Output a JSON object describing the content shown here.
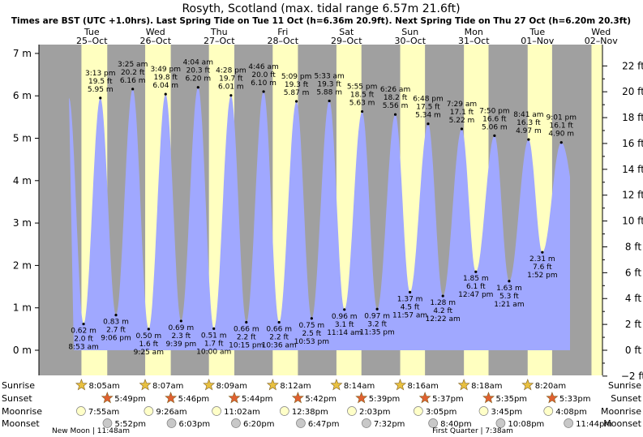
{
  "chart_data": {
    "type": "area",
    "title": "Rosyth, Scotland (max. tidal range 6.57m 21.6ft)",
    "subtitle": "Times are BST (UTC +1.0hrs). Last Spring Tide on Tue 11 Oct (h=6.36m 20.9ft). Next Spring Tide on Thu 27 Oct (h=6.20m 20.3ft)",
    "y_left": {
      "unit": "m",
      "range": [
        -0.7,
        7.3
      ],
      "ticks": [
        "0 m",
        "1 m",
        "2 m",
        "3 m",
        "4 m",
        "5 m",
        "6 m",
        "7 m"
      ]
    },
    "y_right": {
      "unit": "ft",
      "ticks": [
        "−2 ft",
        "0 ft",
        "2 ft",
        "4 ft",
        "6 ft",
        "8 ft",
        "10 ft",
        "12 ft",
        "14 ft",
        "16 ft",
        "18 ft",
        "20 ft",
        "22 ft"
      ]
    },
    "days": [
      {
        "dow": "Tue",
        "date": "25–Oct"
      },
      {
        "dow": "Wed",
        "date": "26–Oct"
      },
      {
        "dow": "Thu",
        "date": "27–Oct"
      },
      {
        "dow": "Fri",
        "date": "28–Oct"
      },
      {
        "dow": "Sat",
        "date": "29–Oct"
      },
      {
        "dow": "Sun",
        "date": "30–Oct"
      },
      {
        "dow": "Mon",
        "date": "31–Oct"
      },
      {
        "dow": "Tue",
        "date": "01–Nov"
      },
      {
        "dow": "Wed",
        "date": "02–Nov"
      }
    ],
    "tides": [
      {
        "type": "low",
        "day": 0,
        "time": "8:53 am",
        "m": "0.62 m",
        "ft": "2.0 ft",
        "h": 0.62
      },
      {
        "type": "high",
        "day": 0,
        "time": "3:13 pm",
        "m": "5.95 m",
        "ft": "19.5 ft",
        "h": 5.95
      },
      {
        "type": "low",
        "day": 0,
        "time": "9:06 pm",
        "m": "0.83 m",
        "ft": "2.7 ft",
        "h": 0.83
      },
      {
        "type": "high",
        "day": 1,
        "time": "3:25 am",
        "m": "6.16 m",
        "ft": "20.2 ft",
        "h": 6.16
      },
      {
        "type": "low",
        "day": 1,
        "time": "9:25 am",
        "m": "0.50 m",
        "ft": "1.6 ft",
        "h": 0.5
      },
      {
        "type": "high",
        "day": 1,
        "time": "3:49 pm",
        "m": "6.04 m",
        "ft": "19.8 ft",
        "h": 6.04
      },
      {
        "type": "low",
        "day": 1,
        "time": "9:39 pm",
        "m": "0.69 m",
        "ft": "2.3 ft",
        "h": 0.69
      },
      {
        "type": "high",
        "day": 2,
        "time": "4:04 am",
        "m": "6.20 m",
        "ft": "20.3 ft",
        "h": 6.2
      },
      {
        "type": "low",
        "day": 2,
        "time": "10:00 am",
        "m": "0.51 m",
        "ft": "1.7 ft",
        "h": 0.51
      },
      {
        "type": "high",
        "day": 2,
        "time": "4:28 pm",
        "m": "6.01 m",
        "ft": "19.7 ft",
        "h": 6.01
      },
      {
        "type": "low",
        "day": 2,
        "time": "10:15 pm",
        "m": "0.66 m",
        "ft": "2.2 ft",
        "h": 0.66
      },
      {
        "type": "high",
        "day": 3,
        "time": "4:46 am",
        "m": "6.10 m",
        "ft": "20.0 ft",
        "h": 6.1
      },
      {
        "type": "low",
        "day": 3,
        "time": "10:36 am",
        "m": "0.66 m",
        "ft": "2.2 ft",
        "h": 0.66
      },
      {
        "type": "high",
        "day": 3,
        "time": "5:09 pm",
        "m": "5.87 m",
        "ft": "19.3 ft",
        "h": 5.87
      },
      {
        "type": "low",
        "day": 3,
        "time": "10:53 pm",
        "m": "0.75 m",
        "ft": "2.5 ft",
        "h": 0.75
      },
      {
        "type": "high",
        "day": 4,
        "time": "5:33 am",
        "m": "5.88 m",
        "ft": "19.3 ft",
        "h": 5.88
      },
      {
        "type": "low",
        "day": 4,
        "time": "11:14 am",
        "m": "0.96 m",
        "ft": "3.1 ft",
        "h": 0.96
      },
      {
        "type": "high",
        "day": 4,
        "time": "5:55 pm",
        "m": "5.63 m",
        "ft": "18.5 ft",
        "h": 5.63
      },
      {
        "type": "low",
        "day": 4,
        "time": "11:35 pm",
        "m": "0.97 m",
        "ft": "3.2 ft",
        "h": 0.97
      },
      {
        "type": "high",
        "day": 5,
        "time": "6:26 am",
        "m": "5.56 m",
        "ft": "18.2 ft",
        "h": 5.56
      },
      {
        "type": "low",
        "day": 5,
        "time": "11:57 am",
        "m": "1.37 m",
        "ft": "4.5 ft",
        "h": 1.37
      },
      {
        "type": "high",
        "day": 5,
        "time": "6:48 pm",
        "m": "5.34 m",
        "ft": "17.5 ft",
        "h": 5.34
      },
      {
        "type": "low",
        "day": 6,
        "time": "12:22 am",
        "m": "1.28 m",
        "ft": "4.2 ft",
        "h": 1.28
      },
      {
        "type": "high",
        "day": 6,
        "time": "7:29 am",
        "m": "5.22 m",
        "ft": "17.1 ft",
        "h": 5.22
      },
      {
        "type": "low",
        "day": 6,
        "time": "12:47 pm",
        "m": "1.85 m",
        "ft": "6.1 ft",
        "h": 1.85
      },
      {
        "type": "high",
        "day": 6,
        "time": "7:50 pm",
        "m": "5.06 m",
        "ft": "16.6 ft",
        "h": 5.06
      },
      {
        "type": "low",
        "day": 7,
        "time": "1:21 am",
        "m": "1.63 m",
        "ft": "5.3 ft",
        "h": 1.63
      },
      {
        "type": "high",
        "day": 7,
        "time": "8:41 am",
        "m": "4.97 m",
        "ft": "16.3 ft",
        "h": 4.97
      },
      {
        "type": "low",
        "day": 7,
        "time": "1:52 pm",
        "m": "2.31 m",
        "ft": "7.6 ft",
        "h": 2.31
      },
      {
        "type": "high",
        "day": 7,
        "time": "9:01 pm",
        "m": "4.90 m",
        "ft": "16.1 ft",
        "h": 4.9
      }
    ],
    "rows": [
      {
        "label": "Sunrise",
        "times": [
          "8:05am",
          "8:07am",
          "8:09am",
          "8:12am",
          "8:14am",
          "8:16am",
          "8:18am",
          "8:20am"
        ]
      },
      {
        "label": "Sunset",
        "times": [
          "5:49pm",
          "5:46pm",
          "5:44pm",
          "5:42pm",
          "5:39pm",
          "5:37pm",
          "5:35pm",
          "5:33pm"
        ]
      },
      {
        "label": "Moonrise",
        "times": [
          "7:55am",
          "9:26am",
          "11:02am",
          "12:38pm",
          "2:03pm",
          "3:05pm",
          "3:45pm",
          "4:08pm"
        ]
      },
      {
        "label": "Moonset",
        "times": [
          "5:52pm",
          "6:03pm",
          "6:20pm",
          "6:47pm",
          "7:32pm",
          "8:40pm",
          "10:08pm",
          "11:44pm"
        ]
      }
    ],
    "moon_phases": [
      {
        "text": "New Moon | 11:48am",
        "day": 0
      },
      {
        "text": "First Quarter | 7:38am",
        "day": 6
      }
    ],
    "colors": {
      "night": "#a0a0a0",
      "day": "#ffffc0",
      "water": "#a0a8ff",
      "sun": "#e8c040",
      "sunset": "#e06030",
      "moon": "#ffffc8",
      "moonset": "#c8c8c8"
    }
  }
}
